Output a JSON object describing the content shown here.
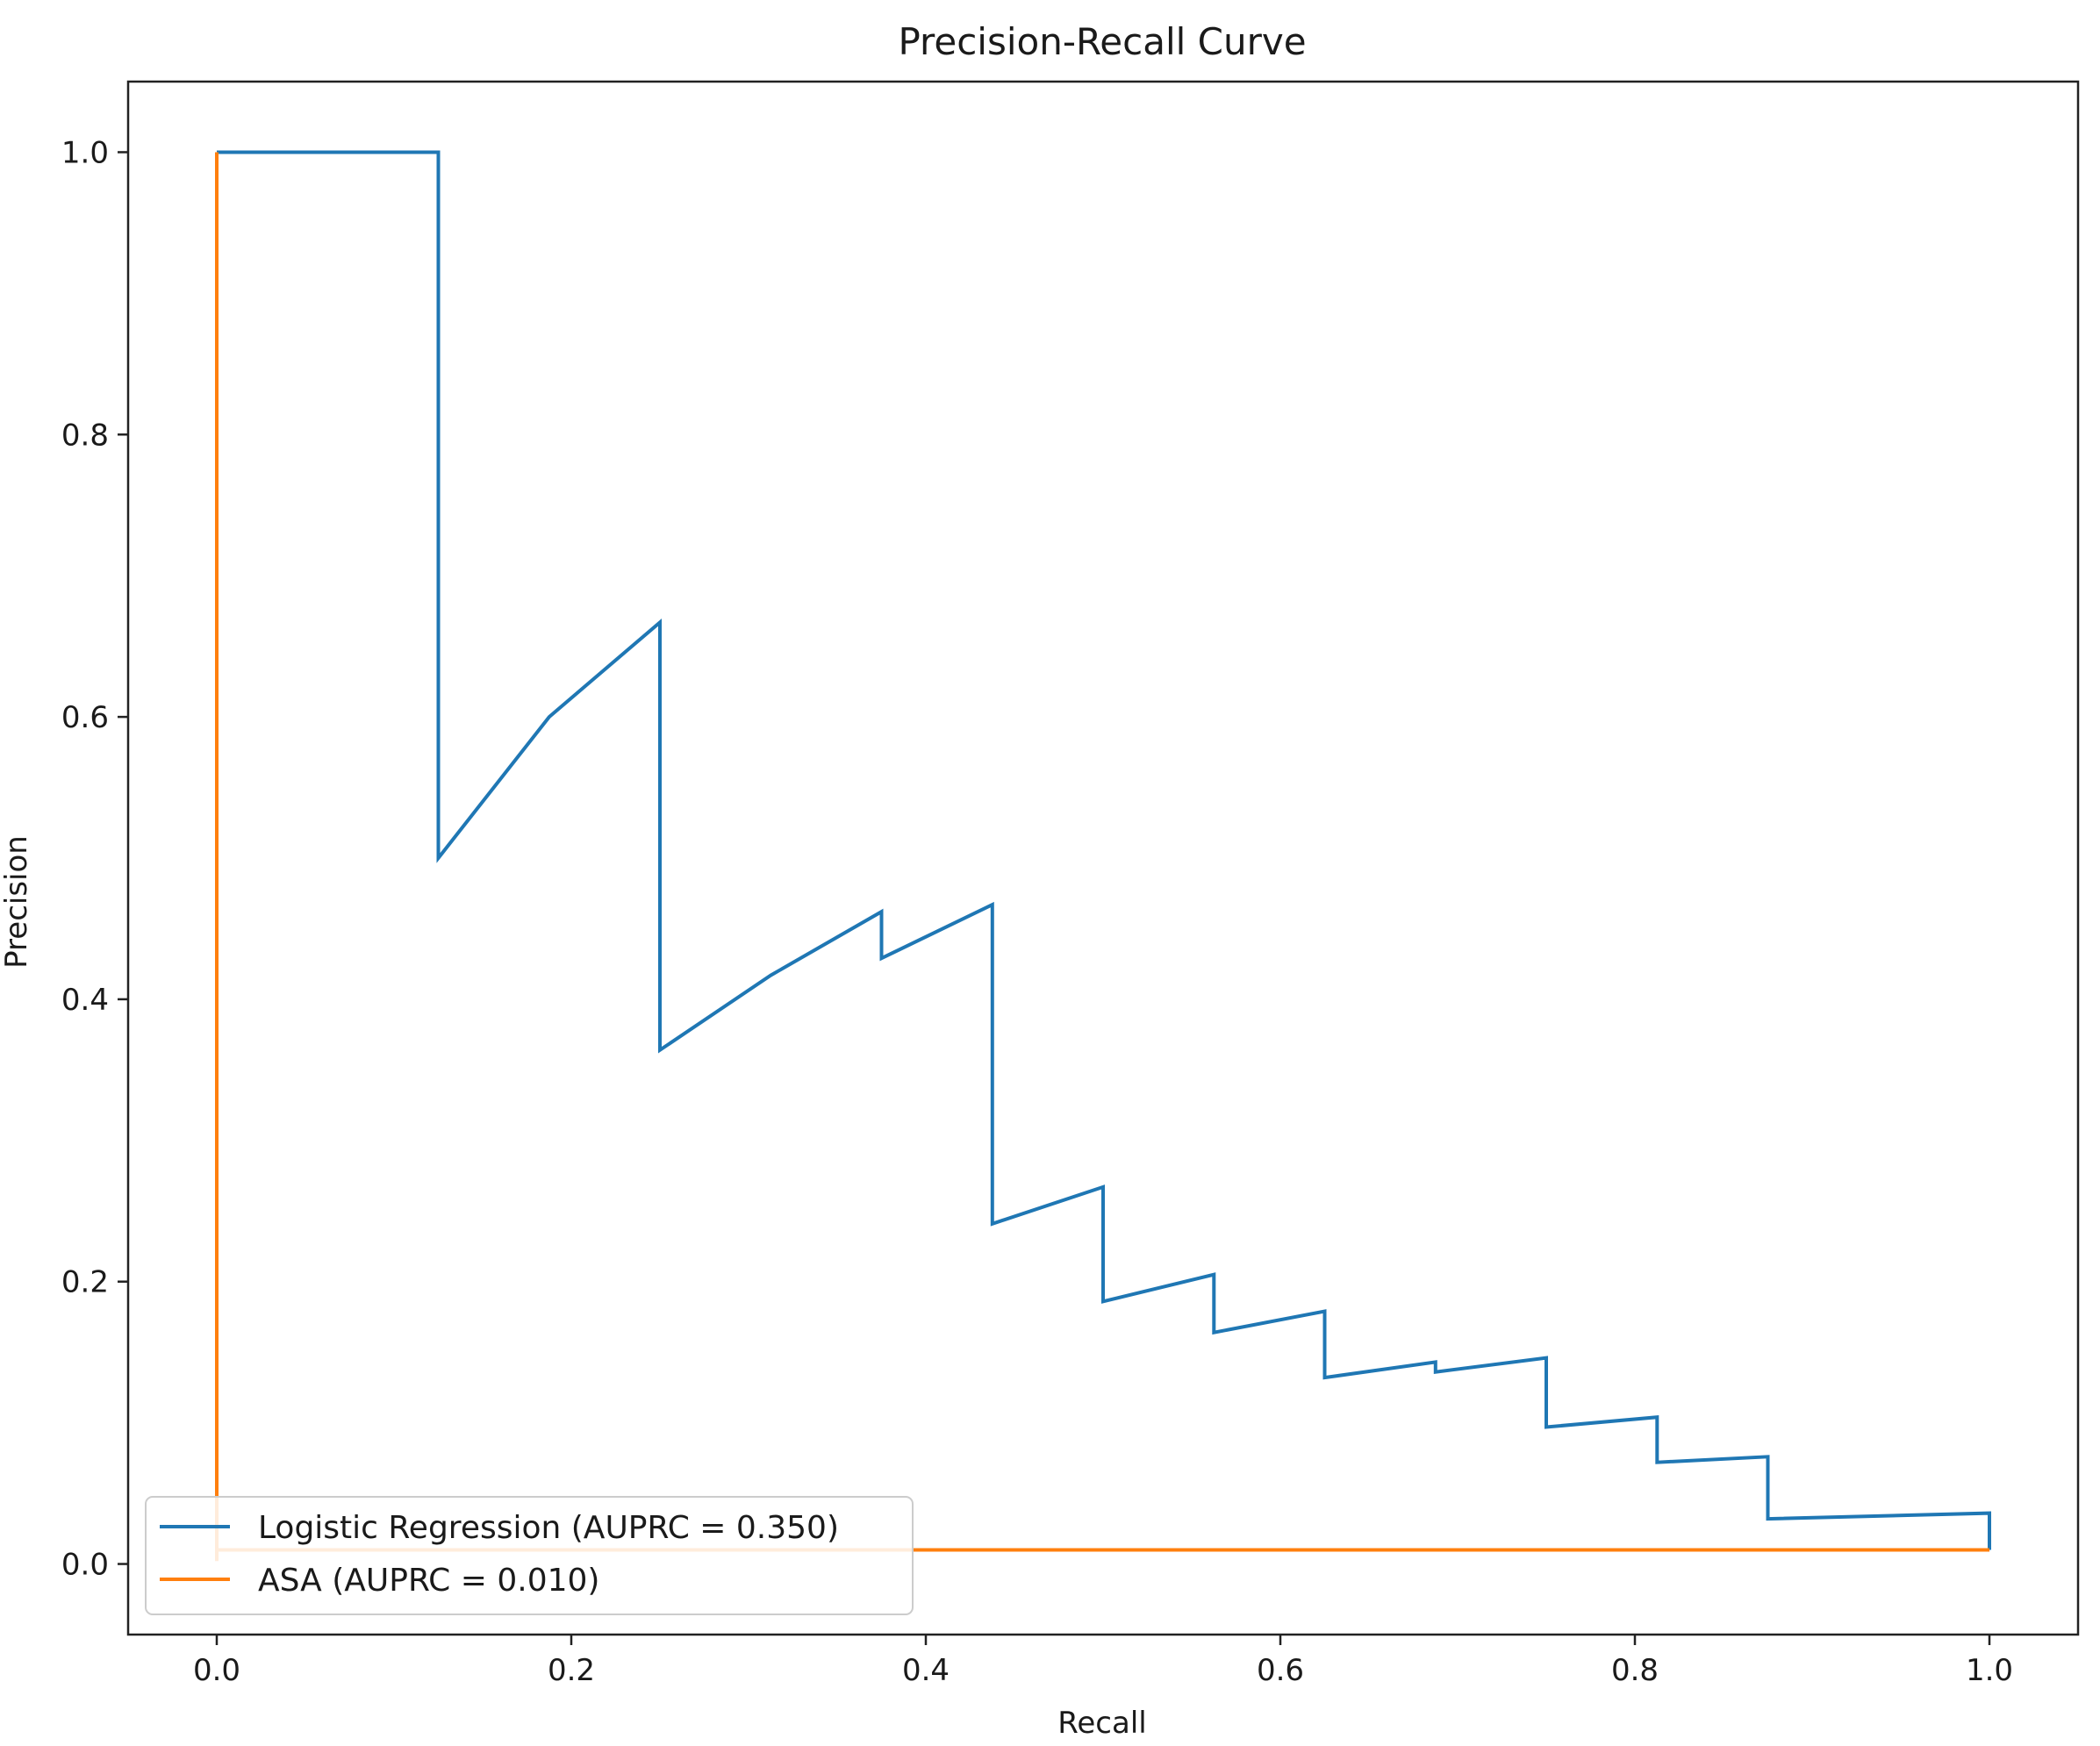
{
  "chart_data": {
    "type": "line",
    "title": "Precision-Recall Curve",
    "xlabel": "Recall",
    "ylabel": "Precision",
    "xlim": [
      -0.05,
      1.05
    ],
    "ylim": [
      -0.05,
      1.05
    ],
    "xticks": [
      0.0,
      0.2,
      0.4,
      0.6,
      0.8,
      1.0
    ],
    "yticks": [
      0.0,
      0.2,
      0.4,
      0.6,
      0.8,
      1.0
    ],
    "xtick_labels": [
      "0.0",
      "0.2",
      "0.4",
      "0.6",
      "0.8",
      "1.0"
    ],
    "ytick_labels": [
      "0.0",
      "0.2",
      "0.4",
      "0.6",
      "0.8",
      "1.0"
    ],
    "grid": false,
    "legend_position": "lower-left",
    "series": [
      {
        "name": "Logistic Regression (AUPRC = 0.350)",
        "color": "#1f77b4",
        "points": [
          [
            0.0,
            1.0
          ],
          [
            0.125,
            1.0
          ],
          [
            0.125,
            0.5
          ],
          [
            0.1875,
            0.6
          ],
          [
            0.25,
            0.667
          ],
          [
            0.25,
            0.364
          ],
          [
            0.3125,
            0.417
          ],
          [
            0.375,
            0.462
          ],
          [
            0.375,
            0.429
          ],
          [
            0.4375,
            0.467
          ],
          [
            0.4375,
            0.241
          ],
          [
            0.5,
            0.267
          ],
          [
            0.5,
            0.186
          ],
          [
            0.5625,
            0.205
          ],
          [
            0.5625,
            0.164
          ],
          [
            0.625,
            0.179
          ],
          [
            0.625,
            0.132
          ],
          [
            0.6875,
            0.143
          ],
          [
            0.6875,
            0.136
          ],
          [
            0.75,
            0.146
          ],
          [
            0.75,
            0.097
          ],
          [
            0.8125,
            0.104
          ],
          [
            0.8125,
            0.072
          ],
          [
            0.875,
            0.076
          ],
          [
            0.875,
            0.032
          ],
          [
            1.0,
            0.036
          ],
          [
            1.0,
            0.01
          ]
        ]
      },
      {
        "name": "ASA (AUPRC = 0.010)",
        "color": "#ff7f0e",
        "points": [
          [
            0.0,
            1.0
          ],
          [
            0.0,
            0.002
          ],
          [
            0.0,
            0.01
          ],
          [
            1.0,
            0.01
          ]
        ]
      }
    ]
  }
}
